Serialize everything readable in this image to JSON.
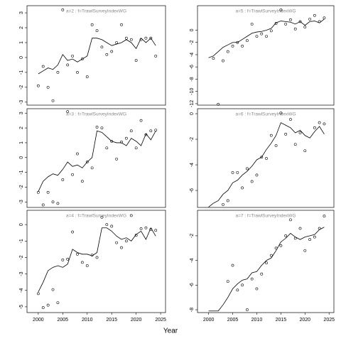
{
  "xlabel": "Year",
  "chart_data": [
    {
      "type": "scatter",
      "title": "a=2  :  f=TrawlSurveyIndexWG",
      "color": "#000000",
      "xlim": [
        1997.7,
        2026
      ],
      "ylim": [
        -3.2,
        3.48
      ],
      "yticks": [
        -3,
        -2,
        -1,
        0,
        1,
        2,
        3
      ],
      "series": [
        {
          "style": "points",
          "x": [
            2000,
            2001,
            2002,
            2003,
            2004,
            2005,
            2006,
            2007,
            2008,
            2009,
            2010,
            2011,
            2012,
            2013,
            2014,
            2015,
            2016,
            2017,
            2018,
            2019,
            2020,
            2021,
            2022,
            2023,
            2024
          ],
          "values": [
            -1.9,
            -0.6,
            -2.0,
            -2.9,
            -1.0,
            3.2,
            -0.5,
            0.1,
            -1.0,
            -0.1,
            -1.3,
            2.2,
            1.8,
            0.7,
            0.2,
            0.4,
            1.0,
            2.2,
            1.3,
            1.2,
            -0.2,
            1.2,
            1.3,
            1.3,
            0.1
          ]
        },
        {
          "style": "line",
          "x": [
            2000,
            2001,
            2002,
            2003,
            2004,
            2005,
            2006,
            2007,
            2008,
            2009,
            2010,
            2011,
            2012,
            2013,
            2014,
            2015,
            2016,
            2017,
            2018,
            2019,
            2020,
            2021,
            2022,
            2023,
            2024
          ],
          "values": [
            -1.1,
            -0.9,
            -0.7,
            -0.8,
            -0.5,
            0.2,
            -0.2,
            -0.1,
            -0.3,
            -0.1,
            0.1,
            1.3,
            1.3,
            1.2,
            1.0,
            0.8,
            0.9,
            1.0,
            1.2,
            1.0,
            0.6,
            1.3,
            1.0,
            1.3,
            0.8
          ]
        }
      ]
    },
    {
      "type": "scatter",
      "title": "a=5  :  f=TrawlSurveyIndexWG",
      "color": "#000000",
      "xlim": [
        1997.7,
        2026
      ],
      "ylim": [
        -12.24,
        4.0
      ],
      "yticks": [
        -12,
        -10,
        -8,
        -6,
        -4,
        -2,
        0
      ],
      "series": [
        {
          "style": "points",
          "x": [
            2001,
            2002,
            2003,
            2004,
            2005,
            2006,
            2007,
            2008,
            2009,
            2010,
            2011,
            2012,
            2013,
            2014,
            2015,
            2016,
            2017,
            2018,
            2019,
            2020,
            2021,
            2022,
            2023,
            2024
          ],
          "values": [
            -4.6,
            -12.1,
            -5.0,
            -3.5,
            -2.6,
            -2.0,
            -2.6,
            -1.7,
            1.0,
            -1.0,
            -0.6,
            -1.0,
            -0.1,
            1.1,
            3.3,
            1.0,
            1.7,
            0.2,
            1.4,
            0.5,
            1.8,
            2.4,
            1.4,
            2.0
          ]
        },
        {
          "style": "line",
          "x": [
            2000,
            2001,
            2002,
            2003,
            2004,
            2005,
            2006,
            2007,
            2008,
            2009,
            2010,
            2011,
            2012,
            2013,
            2014,
            2015,
            2016,
            2017,
            2018,
            2019,
            2020,
            2021,
            2022,
            2023,
            2024
          ],
          "values": [
            -4.5,
            -4.2,
            -3.5,
            -2.8,
            -2.4,
            -2.0,
            -2.0,
            -1.5,
            -1.0,
            -0.5,
            -0.3,
            -0.2,
            0.0,
            0.3,
            1.2,
            1.5,
            1.4,
            1.3,
            1.0,
            1.4,
            0.8,
            1.4,
            1.5,
            1.2,
            1.8
          ]
        }
      ]
    },
    {
      "type": "scatter",
      "title": "a=3  :  f=TrawlSurveyIndexWG",
      "color": "#000000",
      "xlim": [
        1997.7,
        2026
      ],
      "ylim": [
        -3.37,
        3.3
      ],
      "yticks": [
        -3,
        -2,
        -1,
        0,
        1,
        2,
        3
      ],
      "series": [
        {
          "style": "points",
          "x": [
            2000,
            2001,
            2002,
            2003,
            2004,
            2005,
            2006,
            2007,
            2008,
            2009,
            2010,
            2011,
            2012,
            2013,
            2014,
            2015,
            2016,
            2017,
            2018,
            2019,
            2020,
            2021,
            2022,
            2023,
            2024
          ],
          "values": [
            -2.35,
            -3.2,
            -2.35,
            -3.0,
            -3.1,
            -1.5,
            3.1,
            -1.15,
            0.25,
            -1.6,
            -0.3,
            -0.7,
            2.05,
            2.0,
            0.65,
            1.1,
            -0.1,
            1.05,
            1.3,
            1.8,
            0.65,
            2.5,
            1.55,
            1.8,
            1.85
          ]
        },
        {
          "style": "line",
          "x": [
            2000,
            2001,
            2002,
            2003,
            2004,
            2005,
            2006,
            2007,
            2008,
            2009,
            2010,
            2011,
            2012,
            2013,
            2014,
            2015,
            2016,
            2017,
            2018,
            2019,
            2020,
            2021,
            2022,
            2023,
            2024
          ],
          "values": [
            -2.3,
            -1.6,
            -1.3,
            -1.1,
            -1.2,
            -0.8,
            -0.3,
            -0.6,
            -0.5,
            -0.7,
            -0.3,
            0.0,
            1.8,
            1.7,
            1.4,
            1.1,
            1.0,
            1.0,
            0.8,
            1.3,
            1.1,
            0.8,
            1.6,
            1.2,
            1.8
          ]
        }
      ]
    },
    {
      "type": "scatter",
      "title": "a=6  :  f=TrawlSurveyIndexWG",
      "color": "#000000",
      "xlim": [
        1997.7,
        2026
      ],
      "ylim": [
        -7.33,
        0.39
      ],
      "yticks": [
        -6,
        -4,
        -2,
        0
      ],
      "series": [
        {
          "style": "points",
          "x": [
            2003,
            2004,
            2005,
            2006,
            2007,
            2008,
            2009,
            2010,
            2011,
            2012,
            2013,
            2014,
            2015,
            2016,
            2017,
            2018,
            2019,
            2020,
            2022,
            2023,
            2024
          ],
          "values": [
            -7.1,
            -6.8,
            -4.6,
            -4.6,
            -5.8,
            -4.3,
            -5.3,
            -4.8,
            -3.4,
            -3.5,
            -1.7,
            -2.5,
            0.05,
            -1.6,
            -0.45,
            -2.4,
            -1.5,
            -2.9,
            -1.1,
            -0.7,
            -0.8
          ]
        },
        {
          "style": "line",
          "x": [
            2000,
            2001,
            2002,
            2003,
            2004,
            2005,
            2006,
            2007,
            2008,
            2009,
            2010,
            2011,
            2012,
            2013,
            2014,
            2015,
            2016,
            2017,
            2018,
            2019,
            2020,
            2021,
            2022,
            2023,
            2024
          ],
          "values": [
            -7.3,
            -7.0,
            -6.8,
            -6.3,
            -6.0,
            -5.4,
            -5.2,
            -4.8,
            -4.5,
            -4.1,
            -3.6,
            -3.4,
            -2.8,
            -2.3,
            -1.7,
            -0.7,
            -0.9,
            -1.1,
            -1.5,
            -1.3,
            -1.7,
            -1.9,
            -1.4,
            -1.0,
            -1.6
          ]
        }
      ]
    },
    {
      "type": "scatter",
      "title": "a=4  :  f=TrawlSurveyIndexWG",
      "color": "#000000",
      "xlim": [
        1997.7,
        2026
      ],
      "ylim": [
        -5.35,
        0.87
      ],
      "yticks": [
        -5,
        -4,
        -3,
        -2,
        -1,
        0
      ],
      "xticks": [
        2000,
        2005,
        2010,
        2015,
        2020,
        2025
      ],
      "series": [
        {
          "style": "points",
          "x": [
            2000,
            2001,
            2002,
            2003,
            2004,
            2005,
            2006,
            2007,
            2008,
            2009,
            2010,
            2011,
            2012,
            2013,
            2014,
            2015,
            2016,
            2017,
            2018,
            2019,
            2020,
            2021,
            2022,
            2023,
            2024
          ],
          "values": [
            -4.2,
            -5.05,
            -4.9,
            -3.95,
            -4.75,
            -2.15,
            -2.1,
            -0.45,
            -1.8,
            -2.3,
            -2.5,
            -1.85,
            -2.0,
            0.45,
            0.0,
            -0.1,
            -1.1,
            -1.4,
            -1.0,
            0.55,
            -0.65,
            -0.25,
            -0.2,
            -0.3,
            -0.35
          ]
        },
        {
          "style": "line",
          "x": [
            2000,
            2001,
            2002,
            2003,
            2004,
            2005,
            2006,
            2007,
            2008,
            2009,
            2010,
            2011,
            2012,
            2013,
            2014,
            2015,
            2016,
            2017,
            2018,
            2019,
            2020,
            2021,
            2022,
            2023,
            2024
          ],
          "values": [
            -4.1,
            -3.5,
            -2.8,
            -2.6,
            -2.5,
            -2.6,
            -2.4,
            -1.5,
            -1.7,
            -1.8,
            -1.8,
            -1.9,
            -1.7,
            -0.2,
            -0.2,
            -0.4,
            -0.7,
            -0.9,
            -0.8,
            -1.0,
            -0.6,
            -0.4,
            -0.9,
            -0.2,
            -0.7
          ]
        }
      ]
    },
    {
      "type": "scatter",
      "title": "a=7  :  f=TrawlSurveyIndexWG",
      "color": "#000000",
      "xlim": [
        1997.7,
        2026
      ],
      "ylim": [
        -8.23,
        0.07
      ],
      "yticks": [
        -8,
        -6,
        -4,
        -2
      ],
      "xticks": [
        2000,
        2005,
        2010,
        2015,
        2020,
        2025
      ],
      "series": [
        {
          "style": "points",
          "x": [
            2004,
            2005,
            2006,
            2007,
            2008,
            2009,
            2010,
            2011,
            2012,
            2013,
            2014,
            2015,
            2016,
            2017,
            2018,
            2019,
            2020,
            2021,
            2022,
            2023,
            2024
          ],
          "values": [
            -5.7,
            -4.4,
            -6.4,
            -6.0,
            -8.0,
            -5.5,
            -6.3,
            -5.1,
            -4.2,
            -3.6,
            -3.0,
            -2.8,
            -2.0,
            -0.7,
            -2.2,
            -1.4,
            -3.2,
            -2.3,
            -2.1,
            -1.4,
            -0.4
          ]
        },
        {
          "style": "line",
          "x": [
            2000,
            2001,
            2002,
            2003,
            2004,
            2005,
            2006,
            2007,
            2008,
            2009,
            2010,
            2011,
            2012,
            2013,
            2014,
            2015,
            2016,
            2017,
            2018,
            2019,
            2020,
            2021,
            2022,
            2023,
            2024
          ],
          "values": [
            -8.1,
            -8.1,
            -8.1,
            -7.6,
            -7.0,
            -6.3,
            -5.9,
            -5.6,
            -5.5,
            -5.0,
            -4.9,
            -4.4,
            -4.0,
            -3.8,
            -3.2,
            -2.5,
            -2.2,
            -1.8,
            -2.1,
            -2.3,
            -2.1,
            -2.0,
            -1.9,
            -1.5,
            -1.3
          ]
        }
      ]
    }
  ]
}
